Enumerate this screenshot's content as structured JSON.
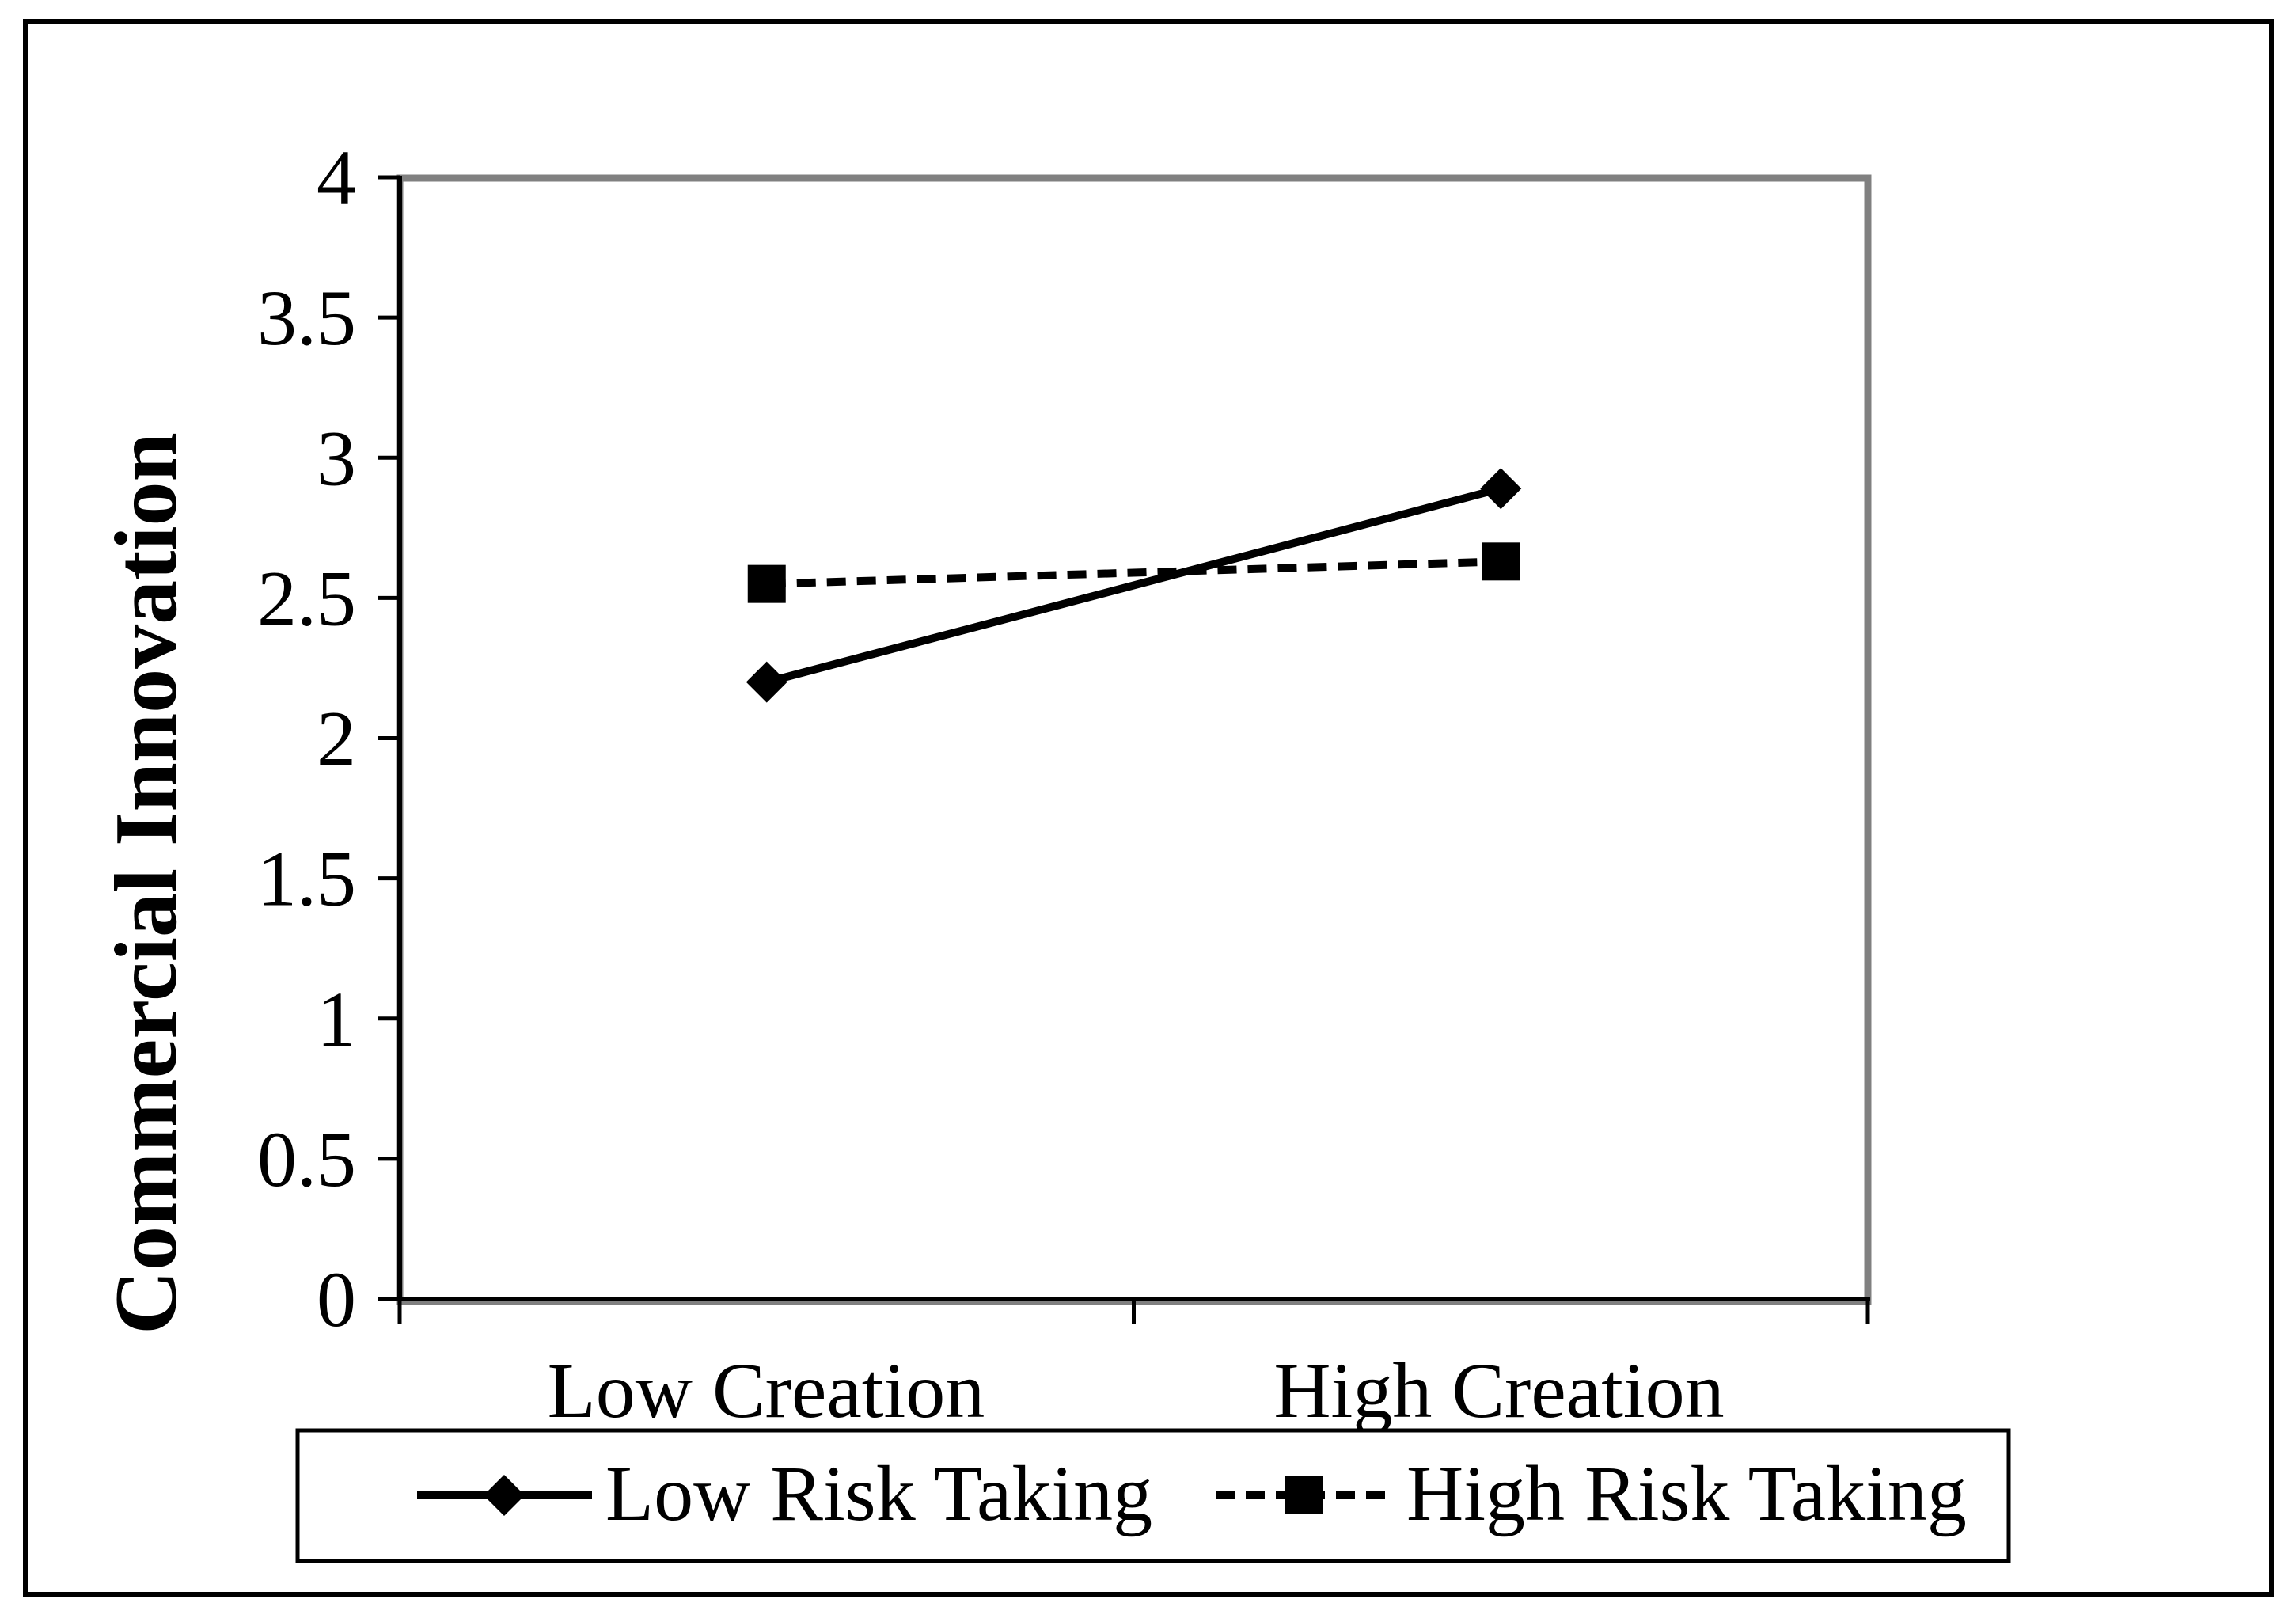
{
  "chart_data": {
    "type": "line",
    "title": "",
    "categories": [
      "Low Creation",
      "High Creation"
    ],
    "series": [
      {
        "name": "Low Risk Taking",
        "values": [
          2.2,
          2.89
        ],
        "line_style": "solid",
        "marker": "diamond"
      },
      {
        "name": "High Risk Taking",
        "values": [
          2.55,
          2.63
        ],
        "line_style": "dashed",
        "marker": "square"
      }
    ],
    "xlabel": "",
    "ylabel": "Commercial Innovation",
    "ylim": [
      0,
      4
    ],
    "ytick_step": 0.5,
    "yticks": [
      "0",
      "0.5",
      "1",
      "1.5",
      "2",
      "2.5",
      "3",
      "3.5",
      "4"
    ],
    "grid": false,
    "legend_position": "bottom",
    "colors": {
      "series": "#000000",
      "plot_border": "#808080",
      "text": "#000000",
      "background": "#ffffff",
      "figure_border": "#000000"
    }
  }
}
